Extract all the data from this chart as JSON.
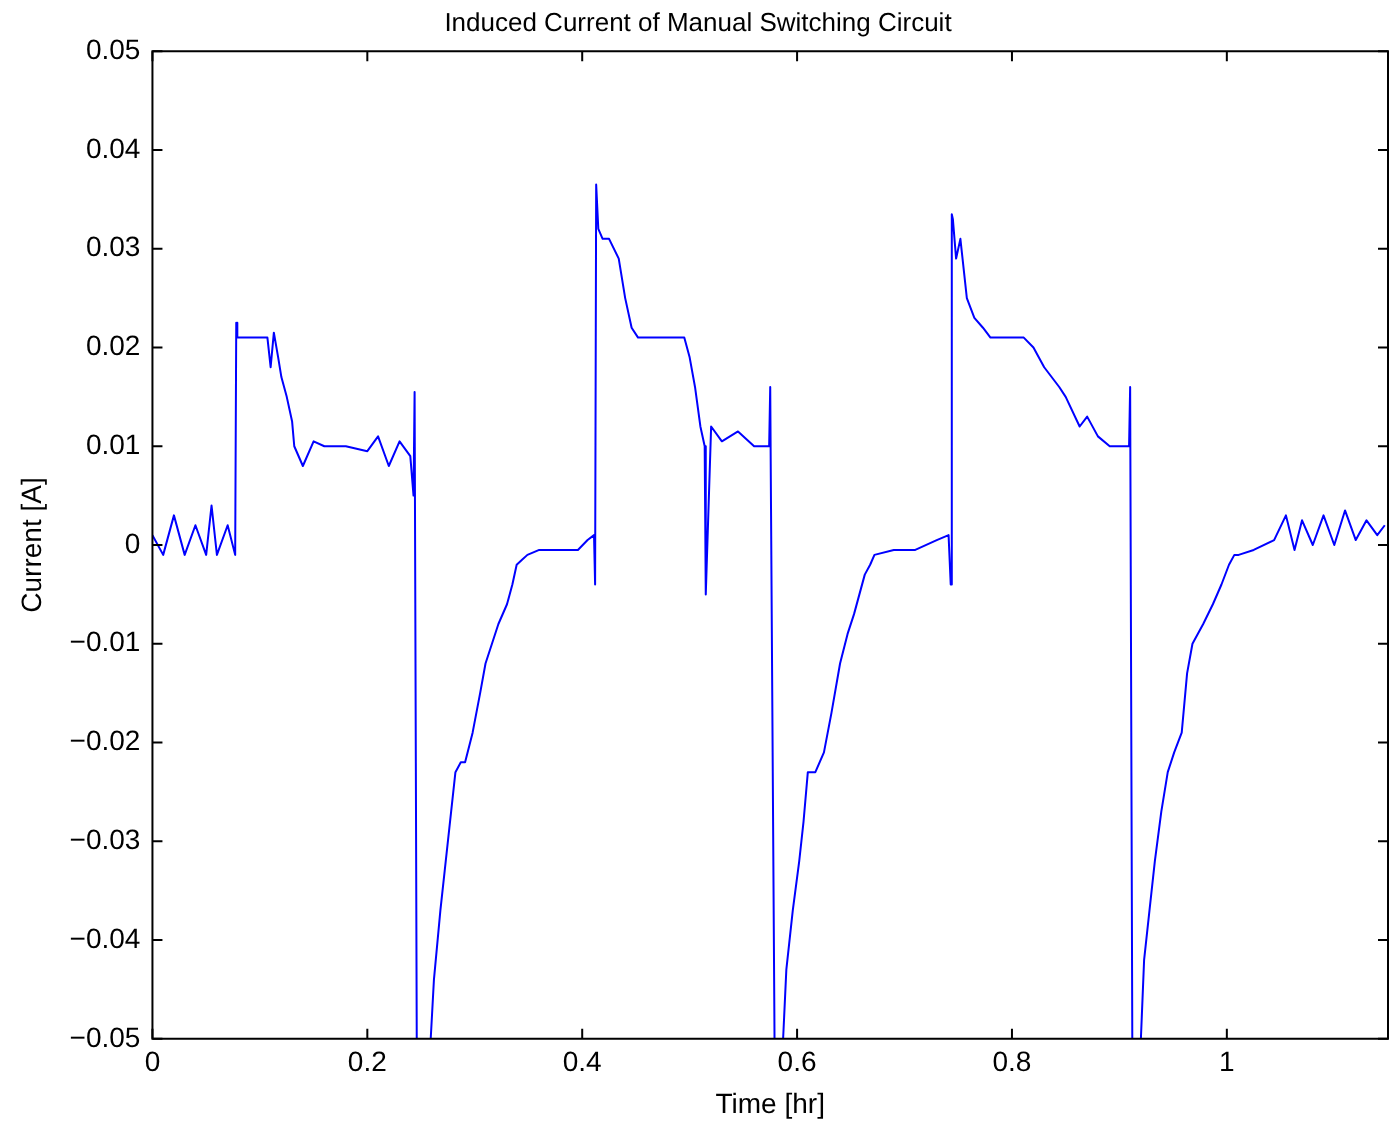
{
  "chart_data": {
    "type": "line",
    "title": "Induced Current of Manual Switching Circuit",
    "xlabel": "Time [hr]",
    "ylabel": "Current [A]",
    "xlim": [
      0,
      1.15
    ],
    "ylim": [
      -0.05,
      0.05
    ],
    "xticks": [
      0,
      0.2,
      0.4,
      0.6,
      0.8,
      1
    ],
    "yticks": [
      -0.05,
      -0.04,
      -0.03,
      -0.02,
      -0.01,
      0,
      0.01,
      0.02,
      0.03,
      0.04,
      0.05
    ],
    "grid": false,
    "legend": false,
    "marker": "none",
    "line_style": "solid",
    "series": [
      {
        "color": "#0000ff",
        "x": [
          0,
          0.01,
          0.02,
          0.03,
          0.04,
          0.05,
          0.055,
          0.06,
          0.07,
          0.077,
          0.078,
          0.079,
          0.09,
          0.1,
          0.107,
          0.11,
          0.113,
          0.117,
          0.12,
          0.125,
          0.13,
          0.132,
          0.14,
          0.15,
          0.16,
          0.18,
          0.2,
          0.21,
          0.22,
          0.23,
          0.24,
          0.243,
          0.244,
          0.246,
          0.252,
          0.259,
          0.262,
          0.268,
          0.272,
          0.278,
          0.282,
          0.287,
          0.291,
          0.298,
          0.305,
          0.31,
          0.316,
          0.322,
          0.33,
          0.335,
          0.339,
          0.344,
          0.349,
          0.36,
          0.38,
          0.396,
          0.405,
          0.411,
          0.412,
          0.413,
          0.415,
          0.419,
          0.425,
          0.434,
          0.44,
          0.446,
          0.452,
          0.465,
          0.48,
          0.495,
          0.5,
          0.505,
          0.51,
          0.514,
          0.515,
          0.52,
          0.53,
          0.545,
          0.56,
          0.574,
          0.575,
          0.579,
          0.583,
          0.587,
          0.59,
          0.596,
          0.602,
          0.606,
          0.61,
          0.617,
          0.625,
          0.632,
          0.64,
          0.647,
          0.653,
          0.658,
          0.663,
          0.668,
          0.672,
          0.69,
          0.71,
          0.73,
          0.741,
          0.743,
          0.744,
          0.745,
          0.748,
          0.752,
          0.758,
          0.765,
          0.773,
          0.78,
          0.79,
          0.811,
          0.82,
          0.83,
          0.844,
          0.85,
          0.863,
          0.87,
          0.88,
          0.891,
          0.9,
          0.909,
          0.91,
          0.912,
          0.916,
          0.92,
          0.923,
          0.928,
          0.933,
          0.939,
          0.945,
          0.951,
          0.958,
          0.963,
          0.968,
          0.978,
          0.987,
          0.995,
          1.002,
          1.007,
          1.011,
          1.025,
          1.044,
          1.055,
          1.063,
          1.07,
          1.08,
          1.09,
          1.1,
          1.11,
          1.12,
          1.13,
          1.14,
          1.147
        ],
        "values": [
          0.001,
          -0.001,
          0.003,
          -0.001,
          0.002,
          -0.001,
          0.004,
          -0.001,
          0.002,
          -0.001,
          0.0225,
          0.021,
          0.021,
          0.021,
          0.021,
          0.018,
          0.0215,
          0.019,
          0.017,
          0.015,
          0.0125,
          0.01,
          0.008,
          0.0105,
          0.01,
          0.01,
          0.0095,
          0.011,
          0.008,
          0.0105,
          0.009,
          0.005,
          0.0155,
          -0.05,
          null,
          -0.05,
          -0.044,
          -0.037,
          -0.033,
          -0.027,
          -0.023,
          -0.022,
          -0.022,
          -0.019,
          -0.015,
          -0.012,
          -0.01,
          -0.008,
          -0.006,
          -0.004,
          -0.002,
          -0.0015,
          -0.001,
          -0.0005,
          -0.0005,
          -0.0005,
          0.0005,
          0.001,
          -0.004,
          0.0365,
          0.032,
          0.031,
          0.031,
          0.029,
          0.025,
          0.022,
          0.021,
          0.021,
          0.021,
          0.021,
          0.019,
          0.016,
          0.012,
          0.01,
          -0.005,
          0.012,
          0.0105,
          0.0115,
          0.01,
          0.01,
          0.016,
          -0.05,
          null,
          -0.05,
          -0.043,
          -0.037,
          -0.032,
          -0.028,
          -0.023,
          -0.023,
          -0.021,
          -0.017,
          -0.012,
          -0.009,
          -0.007,
          -0.005,
          -0.003,
          -0.002,
          -0.001,
          -0.0005,
          -0.0005,
          0.0005,
          0.001,
          -0.004,
          0.0335,
          0.033,
          0.029,
          0.031,
          0.025,
          0.023,
          0.022,
          0.021,
          0.021,
          0.021,
          0.02,
          0.018,
          0.016,
          0.015,
          0.012,
          0.013,
          0.011,
          0.01,
          0.01,
          0.01,
          0.016,
          -0.05,
          null,
          -0.05,
          -0.042,
          -0.037,
          -0.032,
          -0.027,
          -0.023,
          -0.021,
          -0.019,
          -0.013,
          -0.01,
          -0.008,
          -0.006,
          -0.004,
          -0.002,
          -0.001,
          -0.001,
          -0.0005,
          0.0005,
          0.003,
          -0.0005,
          0.0025,
          0,
          0.003,
          0,
          0.0035,
          0.0005,
          0.0025,
          0.001,
          0.002
        ]
      }
    ]
  }
}
